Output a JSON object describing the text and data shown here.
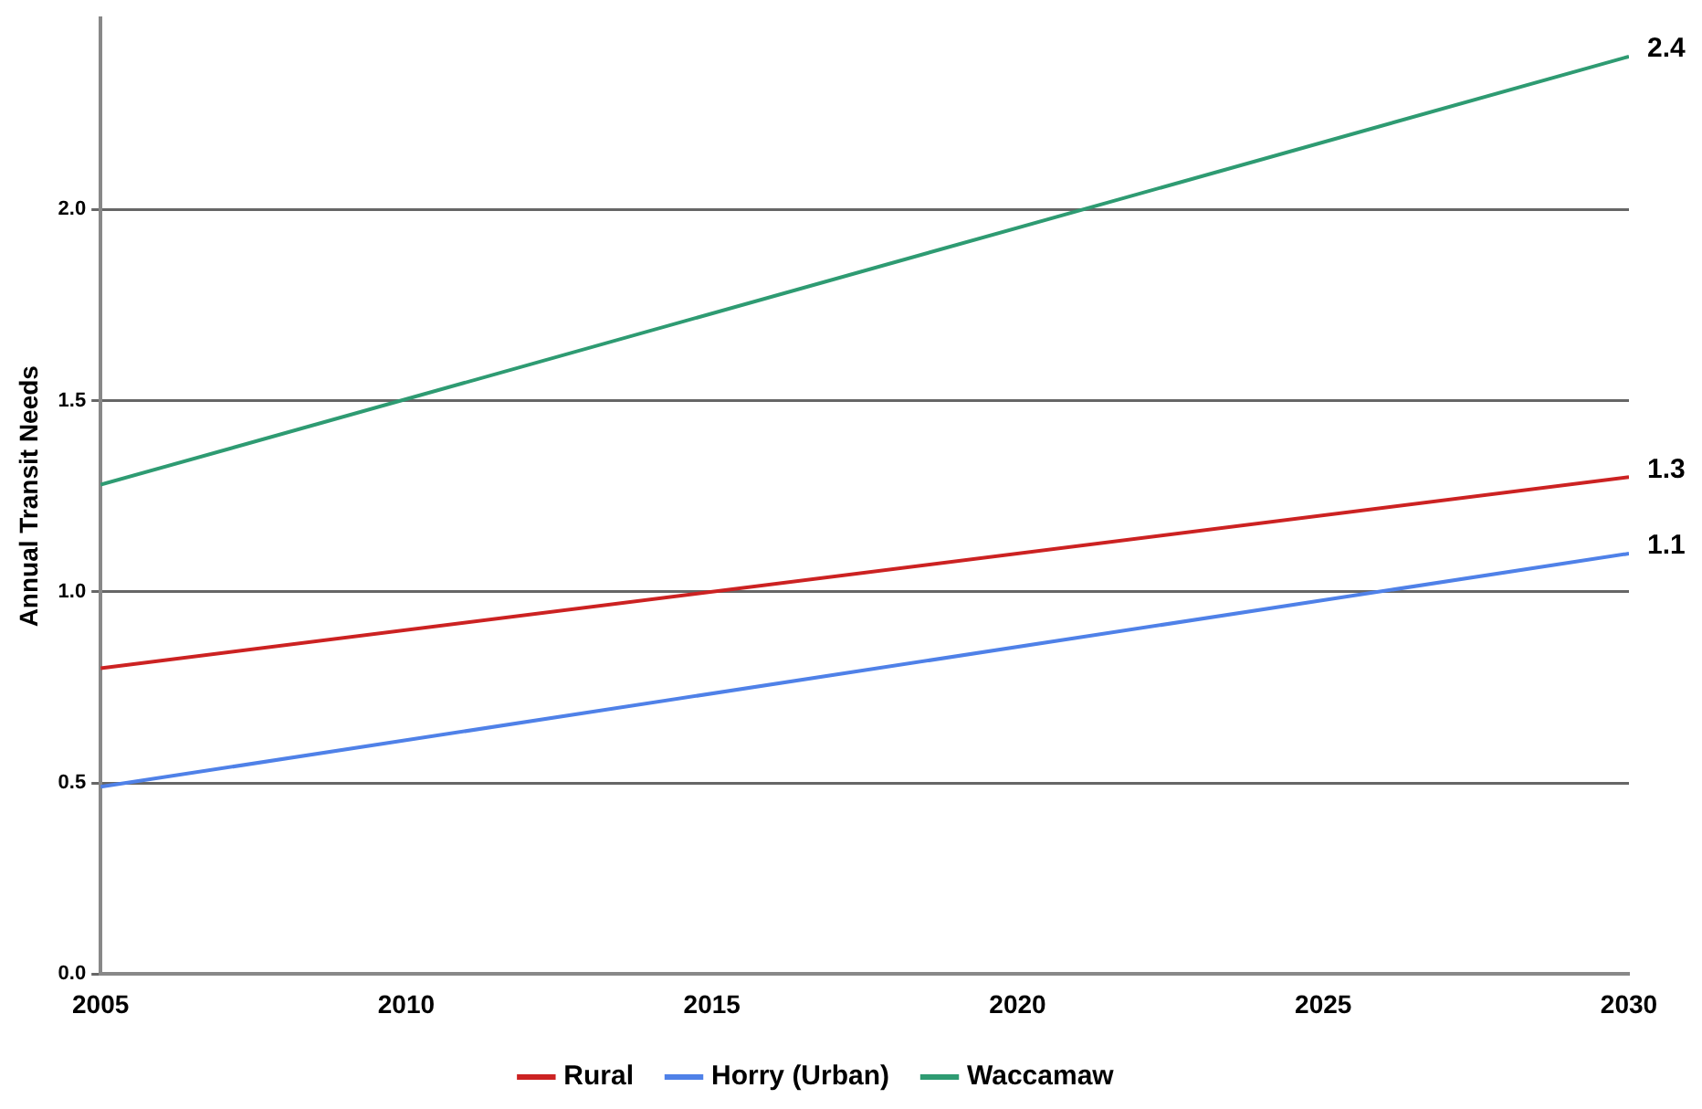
{
  "chart_data": {
    "type": "line",
    "ylabel": "Annual Transit Needs",
    "x": [
      2005,
      2030
    ],
    "series": [
      {
        "name": "Rural",
        "color": "#cc2222",
        "values": [
          0.8,
          1.3
        ],
        "value_labels": [
          null,
          "1.3"
        ]
      },
      {
        "name": "Horry (Urban)",
        "color": "#4f81e8",
        "values": [
          0.49,
          1.1
        ],
        "value_labels": [
          null,
          "1.1"
        ]
      },
      {
        "name": "Waccamaw",
        "color": "#2e9b72",
        "values": [
          1.28,
          2.4
        ],
        "value_labels": [
          null,
          "2.4"
        ]
      }
    ],
    "xlim": [
      2005,
      2030
    ],
    "xticks": [
      2005,
      2010,
      2015,
      2020,
      2025,
      2030
    ],
    "ylim": [
      0,
      2.5
    ],
    "yticks": [
      {
        "value": 0,
        "label": "0.0"
      },
      {
        "value": 0.5,
        "label": "0.5"
      },
      {
        "value": 1,
        "label": "1.0"
      },
      {
        "value": 1.5,
        "label": "1.5"
      },
      {
        "value": 2,
        "label": "2.0"
      }
    ],
    "grid": "y",
    "legend": "bottom",
    "marker": "none",
    "line_style": "solid"
  }
}
